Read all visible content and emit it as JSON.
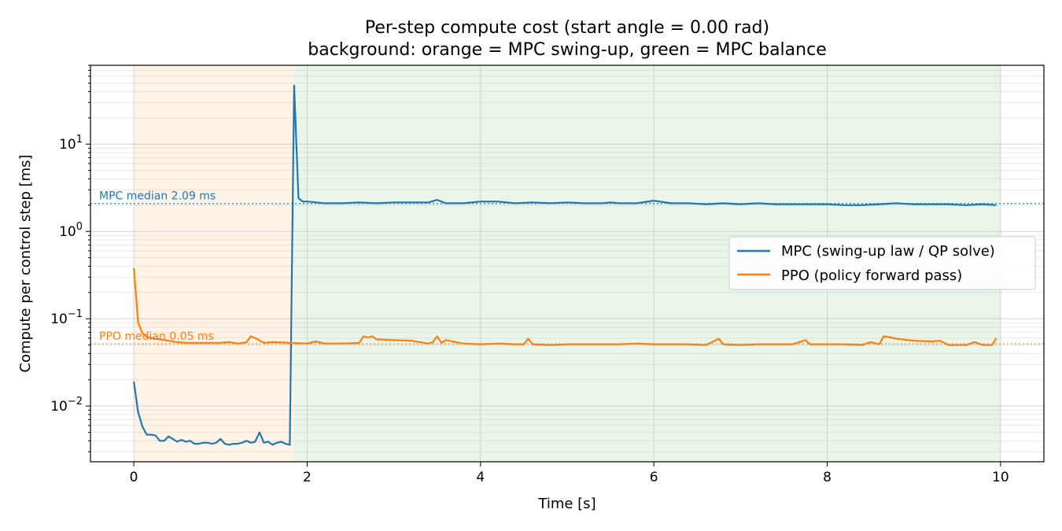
{
  "chart_data": {
    "type": "line",
    "title": "Per-step compute cost (start angle = 0.00 rad)",
    "subtitle": "background: orange = MPC swing-up, green = MPC balance",
    "xlabel": "Time [s]",
    "ylabel": "Compute per control step [ms]",
    "xlim": [
      -0.5,
      10.5
    ],
    "ylim": [
      0.0023,
      80
    ],
    "yscale": "log",
    "xticks": [
      0,
      2,
      4,
      6,
      8,
      10
    ],
    "xtick_labels": [
      "0",
      "2",
      "4",
      "6",
      "8",
      "10"
    ],
    "yticks": [
      0.01,
      0.1,
      1,
      10
    ],
    "ytick_labels": [
      {
        "base": "10",
        "exp": "−2"
      },
      {
        "base": "10",
        "exp": "−1"
      },
      {
        "base": "10",
        "exp": "0"
      },
      {
        "base": "10",
        "exp": "1"
      }
    ],
    "grid": true,
    "legend_position": "center-right",
    "phases": [
      {
        "name": "MPC swing-up",
        "x0": 0,
        "x1": 1.85,
        "color": "#ff7f0e"
      },
      {
        "name": "MPC balance",
        "x0": 1.85,
        "x1": 10,
        "color": "#2ca02c"
      }
    ],
    "series": [
      {
        "name": "MPC (swing-up law / QP solve)",
        "color": "#1f77b4",
        "median": 2.09,
        "median_label": "MPC median 2.09 ms",
        "x": [
          0,
          0.05,
          0.1,
          0.15,
          0.2,
          0.25,
          0.3,
          0.35,
          0.4,
          0.45,
          0.5,
          0.55,
          0.6,
          0.65,
          0.7,
          0.75,
          0.8,
          0.85,
          0.9,
          0.95,
          1.0,
          1.05,
          1.1,
          1.15,
          1.2,
          1.25,
          1.3,
          1.35,
          1.4,
          1.45,
          1.5,
          1.55,
          1.6,
          1.65,
          1.7,
          1.75,
          1.8,
          1.85,
          1.9,
          1.95,
          2.0,
          2.2,
          2.4,
          2.6,
          2.8,
          3.0,
          3.2,
          3.4,
          3.5,
          3.6,
          3.8,
          4.0,
          4.2,
          4.4,
          4.6,
          4.8,
          5.0,
          5.2,
          5.4,
          5.5,
          5.6,
          5.8,
          6.0,
          6.2,
          6.4,
          6.6,
          6.8,
          7.0,
          7.2,
          7.4,
          7.6,
          7.8,
          8.0,
          8.2,
          8.4,
          8.6,
          8.8,
          9.0,
          9.2,
          9.4,
          9.6,
          9.8,
          9.95
        ],
        "y": [
          0.019,
          0.0085,
          0.0058,
          0.0047,
          0.0047,
          0.0046,
          0.004,
          0.004,
          0.0045,
          0.0042,
          0.0039,
          0.0041,
          0.0039,
          0.004,
          0.0037,
          0.0037,
          0.0038,
          0.0038,
          0.0037,
          0.0038,
          0.0042,
          0.0037,
          0.0036,
          0.0037,
          0.0037,
          0.0038,
          0.004,
          0.0038,
          0.0039,
          0.005,
          0.0038,
          0.0039,
          0.0036,
          0.0038,
          0.0039,
          0.0037,
          0.0036,
          47,
          2.4,
          2.2,
          2.2,
          2.1,
          2.1,
          2.15,
          2.1,
          2.15,
          2.15,
          2.15,
          2.3,
          2.1,
          2.1,
          2.2,
          2.2,
          2.1,
          2.15,
          2.1,
          2.15,
          2.1,
          2.1,
          2.15,
          2.1,
          2.1,
          2.25,
          2.1,
          2.1,
          2.05,
          2.1,
          2.05,
          2.1,
          2.05,
          2.05,
          2.05,
          2.05,
          2.0,
          2.0,
          2.05,
          2.1,
          2.05,
          2.05,
          2.05,
          2.0,
          2.05,
          2.0
        ]
      },
      {
        "name": "PPO (policy forward pass)",
        "color": "#ff7f0e",
        "median": 0.0515,
        "median_label": "PPO median 0.05 ms",
        "x": [
          0,
          0.05,
          0.1,
          0.15,
          0.2,
          0.3,
          0.4,
          0.5,
          0.6,
          0.8,
          1.0,
          1.1,
          1.2,
          1.3,
          1.35,
          1.4,
          1.5,
          1.6,
          1.8,
          2.0,
          2.1,
          2.2,
          2.4,
          2.6,
          2.65,
          2.7,
          2.75,
          2.8,
          3.0,
          3.2,
          3.4,
          3.45,
          3.5,
          3.55,
          3.6,
          3.8,
          4.0,
          4.2,
          4.4,
          4.5,
          4.55,
          4.6,
          4.8,
          5.0,
          5.2,
          5.4,
          5.6,
          5.8,
          6.0,
          6.2,
          6.4,
          6.6,
          6.75,
          6.8,
          7.0,
          7.2,
          7.4,
          7.6,
          7.75,
          7.8,
          8.0,
          8.2,
          8.4,
          8.5,
          8.6,
          8.65,
          8.7,
          8.8,
          9.0,
          9.2,
          9.3,
          9.4,
          9.6,
          9.7,
          9.8,
          9.9,
          9.95
        ],
        "y": [
          0.38,
          0.09,
          0.068,
          0.062,
          0.06,
          0.058,
          0.056,
          0.054,
          0.053,
          0.053,
          0.053,
          0.054,
          0.052,
          0.054,
          0.063,
          0.06,
          0.053,
          0.054,
          0.053,
          0.052,
          0.055,
          0.052,
          0.052,
          0.053,
          0.063,
          0.061,
          0.063,
          0.058,
          0.057,
          0.056,
          0.052,
          0.054,
          0.063,
          0.053,
          0.057,
          0.052,
          0.051,
          0.052,
          0.051,
          0.051,
          0.059,
          0.051,
          0.05,
          0.051,
          0.051,
          0.051,
          0.051,
          0.052,
          0.051,
          0.051,
          0.051,
          0.05,
          0.059,
          0.051,
          0.05,
          0.051,
          0.051,
          0.051,
          0.057,
          0.051,
          0.051,
          0.051,
          0.05,
          0.054,
          0.051,
          0.063,
          0.062,
          0.059,
          0.056,
          0.055,
          0.056,
          0.05,
          0.05,
          0.054,
          0.05,
          0.05,
          0.06
        ]
      }
    ]
  }
}
